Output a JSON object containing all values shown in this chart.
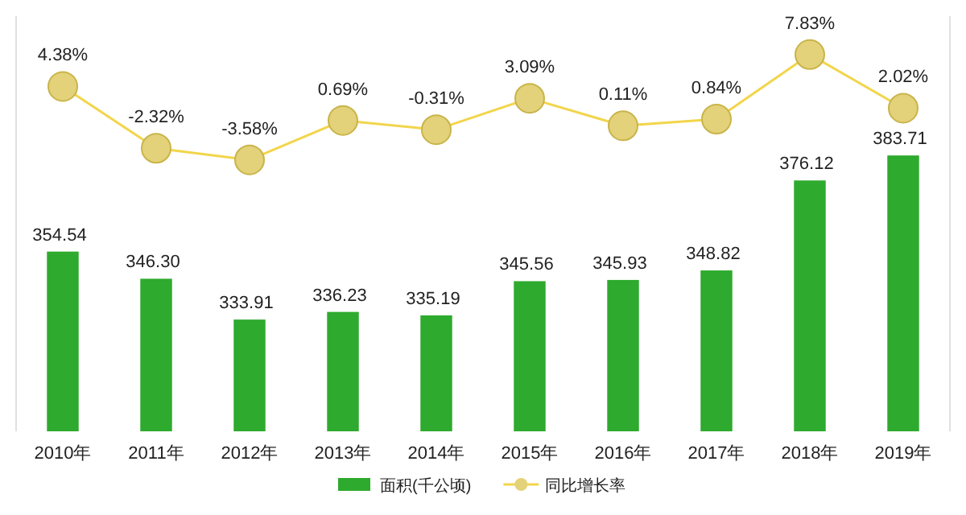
{
  "chart_data": {
    "type": "bar",
    "categories": [
      "2010年",
      "2011年",
      "2012年",
      "2013年",
      "2014年",
      "2015年",
      "2016年",
      "2017年",
      "2018年",
      "2019年"
    ],
    "series": [
      {
        "name": "面积(千公顷)",
        "color": "#2eaa2e",
        "values": [
          354.54,
          346.3,
          333.91,
          336.23,
          335.19,
          345.56,
          345.93,
          348.82,
          376.12,
          383.71
        ],
        "value_labels": [
          "354.54",
          "346.30",
          "333.91",
          "336.23",
          "335.19",
          "345.56",
          "345.93",
          "348.82",
          "376.12",
          "383.71"
        ]
      },
      {
        "name": "同比增长率",
        "type": "line",
        "axis": "y2",
        "color": "#f2d54b",
        "marker": "circle",
        "values": [
          4.38,
          -2.32,
          -3.58,
          0.69,
          -0.31,
          3.09,
          0.11,
          0.84,
          7.83,
          2.02
        ],
        "value_labels": [
          "4.38%",
          "-2.32%",
          "-3.58%",
          "0.69%",
          "-0.31%",
          "3.09%",
          "0.11%",
          "0.84%",
          "7.83%",
          "2.02%"
        ]
      }
    ],
    "ylim": [
      300,
      426
    ],
    "y2lim": [
      -33,
      12
    ],
    "data_labels": true,
    "legend": "bottom",
    "tick_labels": "x",
    "grid": false
  }
}
